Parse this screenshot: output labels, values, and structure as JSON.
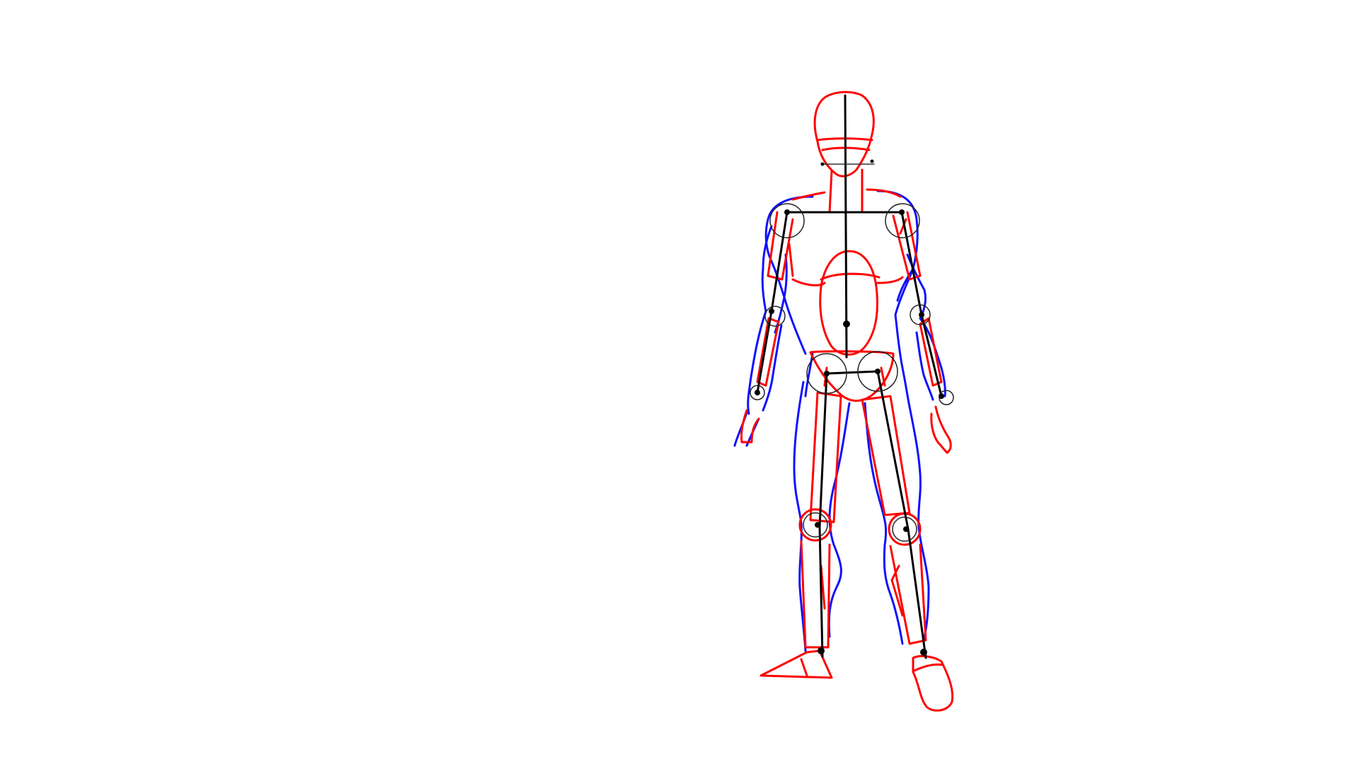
{
  "drawing": {
    "subject": "figure-construction-sketch",
    "colors": {
      "background": "#ffffff",
      "skeleton": "#000000",
      "forms": "#ff0000",
      "outline": "#1010ff",
      "joints": "#000000"
    }
  }
}
